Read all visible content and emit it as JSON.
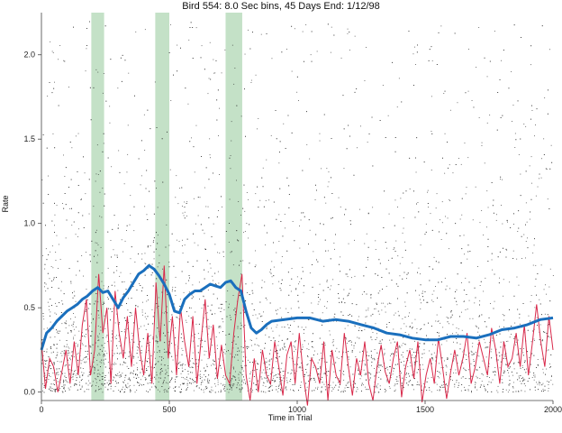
{
  "chart_data": {
    "type": "scatter",
    "title": "Bird 554: 8.0 Sec bins, 45 Days End: 1/12/98",
    "xlabel": "Time in Trial",
    "ylabel": "Rate",
    "xlim": [
      0,
      2000
    ],
    "ylim": [
      -0.05,
      2.25
    ],
    "xticks": [
      0,
      500,
      1000,
      1500,
      2000
    ],
    "xtick_labels": [
      "0",
      "500",
      "1000",
      "1500",
      "2000"
    ],
    "yticks": [
      0.0,
      0.5,
      1.0,
      1.5,
      2.0
    ],
    "ytick_labels": [
      "0.0",
      "0.5",
      "1.0",
      "1.5",
      "2.0"
    ],
    "grid": false,
    "legend": "none",
    "shaded_regions": [
      {
        "x": [
          195,
          245
        ],
        "color": "#b5d9b9"
      },
      {
        "x": [
          445,
          500
        ],
        "color": "#b5d9b9"
      },
      {
        "x": [
          720,
          785
        ],
        "color": "#b5d9b9"
      }
    ],
    "series": [
      {
        "kind": "mean_line",
        "color": "#1a6fbd",
        "x": [
          0,
          20,
          40,
          60,
          80,
          100,
          120,
          140,
          160,
          180,
          200,
          220,
          240,
          260,
          280,
          300,
          320,
          340,
          360,
          380,
          400,
          420,
          440,
          460,
          480,
          500,
          520,
          540,
          560,
          580,
          600,
          620,
          640,
          660,
          680,
          700,
          720,
          740,
          760,
          780,
          800,
          820,
          840,
          860,
          880,
          900,
          950,
          1000,
          1050,
          1100,
          1150,
          1200,
          1250,
          1300,
          1350,
          1400,
          1450,
          1500,
          1550,
          1600,
          1650,
          1700,
          1750,
          1800,
          1850,
          1900,
          1950,
          2000
        ],
        "values": [
          0.25,
          0.35,
          0.38,
          0.42,
          0.45,
          0.48,
          0.5,
          0.52,
          0.55,
          0.57,
          0.6,
          0.62,
          0.59,
          0.6,
          0.55,
          0.5,
          0.56,
          0.6,
          0.65,
          0.7,
          0.72,
          0.75,
          0.73,
          0.69,
          0.64,
          0.58,
          0.48,
          0.47,
          0.55,
          0.58,
          0.6,
          0.6,
          0.62,
          0.64,
          0.63,
          0.62,
          0.65,
          0.66,
          0.62,
          0.6,
          0.48,
          0.38,
          0.35,
          0.37,
          0.4,
          0.42,
          0.43,
          0.44,
          0.44,
          0.42,
          0.43,
          0.42,
          0.4,
          0.38,
          0.35,
          0.34,
          0.32,
          0.31,
          0.31,
          0.33,
          0.33,
          0.32,
          0.34,
          0.37,
          0.38,
          0.4,
          0.43,
          0.44
        ]
      },
      {
        "kind": "daily_rate_line",
        "color": "#d9284a",
        "x": [
          0,
          16,
          32,
          48,
          64,
          80,
          96,
          112,
          128,
          144,
          160,
          176,
          192,
          208,
          224,
          240,
          256,
          272,
          288,
          304,
          320,
          336,
          352,
          368,
          384,
          400,
          416,
          432,
          448,
          464,
          480,
          496,
          512,
          528,
          544,
          560,
          576,
          592,
          608,
          624,
          640,
          656,
          672,
          688,
          704,
          720,
          736,
          752,
          768,
          784,
          800,
          816,
          832,
          848,
          864,
          880,
          896,
          912,
          928,
          944,
          960,
          976,
          992,
          1008,
          1024,
          1040,
          1056,
          1072,
          1088,
          1104,
          1120,
          1136,
          1152,
          1168,
          1184,
          1200,
          1216,
          1232,
          1248,
          1264,
          1280,
          1296,
          1312,
          1328,
          1344,
          1360,
          1376,
          1392,
          1408,
          1424,
          1440,
          1456,
          1472,
          1488,
          1504,
          1520,
          1536,
          1552,
          1568,
          1584,
          1600,
          1616,
          1632,
          1648,
          1664,
          1680,
          1696,
          1712,
          1728,
          1744,
          1760,
          1776,
          1792,
          1808,
          1824,
          1840,
          1856,
          1872,
          1888,
          1904,
          1920,
          1936,
          1952,
          1968,
          1984,
          2000
        ],
        "values": [
          0.3,
          0.02,
          0.2,
          0.15,
          0.0,
          0.12,
          0.25,
          0.05,
          0.3,
          0.1,
          0.4,
          0.55,
          0.1,
          0.25,
          0.7,
          0.35,
          0.5,
          0.05,
          0.6,
          0.35,
          0.2,
          0.45,
          0.15,
          0.5,
          0.25,
          0.1,
          0.35,
          0.05,
          0.65,
          0.3,
          0.75,
          0.2,
          0.45,
          0.1,
          0.5,
          0.3,
          0.15,
          0.45,
          0.05,
          0.3,
          0.55,
          0.2,
          0.4,
          0.08,
          0.28,
          0.1,
          0.05,
          0.35,
          0.55,
          0.7,
          0.1,
          -0.05,
          0.2,
          0.0,
          0.25,
          0.1,
          0.05,
          0.3,
          0.15,
          -0.02,
          0.22,
          0.3,
          0.05,
          0.35,
          0.1,
          -0.08,
          0.2,
          0.15,
          0.05,
          0.3,
          -0.05,
          0.25,
          0.1,
          0.05,
          0.35,
          0.15,
          -0.02,
          0.2,
          0.1,
          0.3,
          0.05,
          -0.05,
          0.15,
          0.28,
          0.12,
          0.05,
          0.2,
          0.3,
          -0.03,
          0.15,
          0.25,
          0.08,
          0.3,
          -0.06,
          0.1,
          0.2,
          0.05,
          0.32,
          0.15,
          -0.04,
          0.12,
          0.25,
          0.1,
          0.2,
          0.35,
          0.05,
          0.15,
          0.3,
          0.2,
          0.1,
          0.38,
          0.25,
          0.05,
          0.3,
          0.15,
          0.2,
          0.35,
          0.15,
          0.4,
          0.1,
          0.3,
          0.52,
          0.3,
          0.15,
          0.45,
          0.25
        ]
      },
      {
        "kind": "scatter_cloud",
        "color": "#222222",
        "description_only": false,
        "count": 5200
      }
    ]
  }
}
